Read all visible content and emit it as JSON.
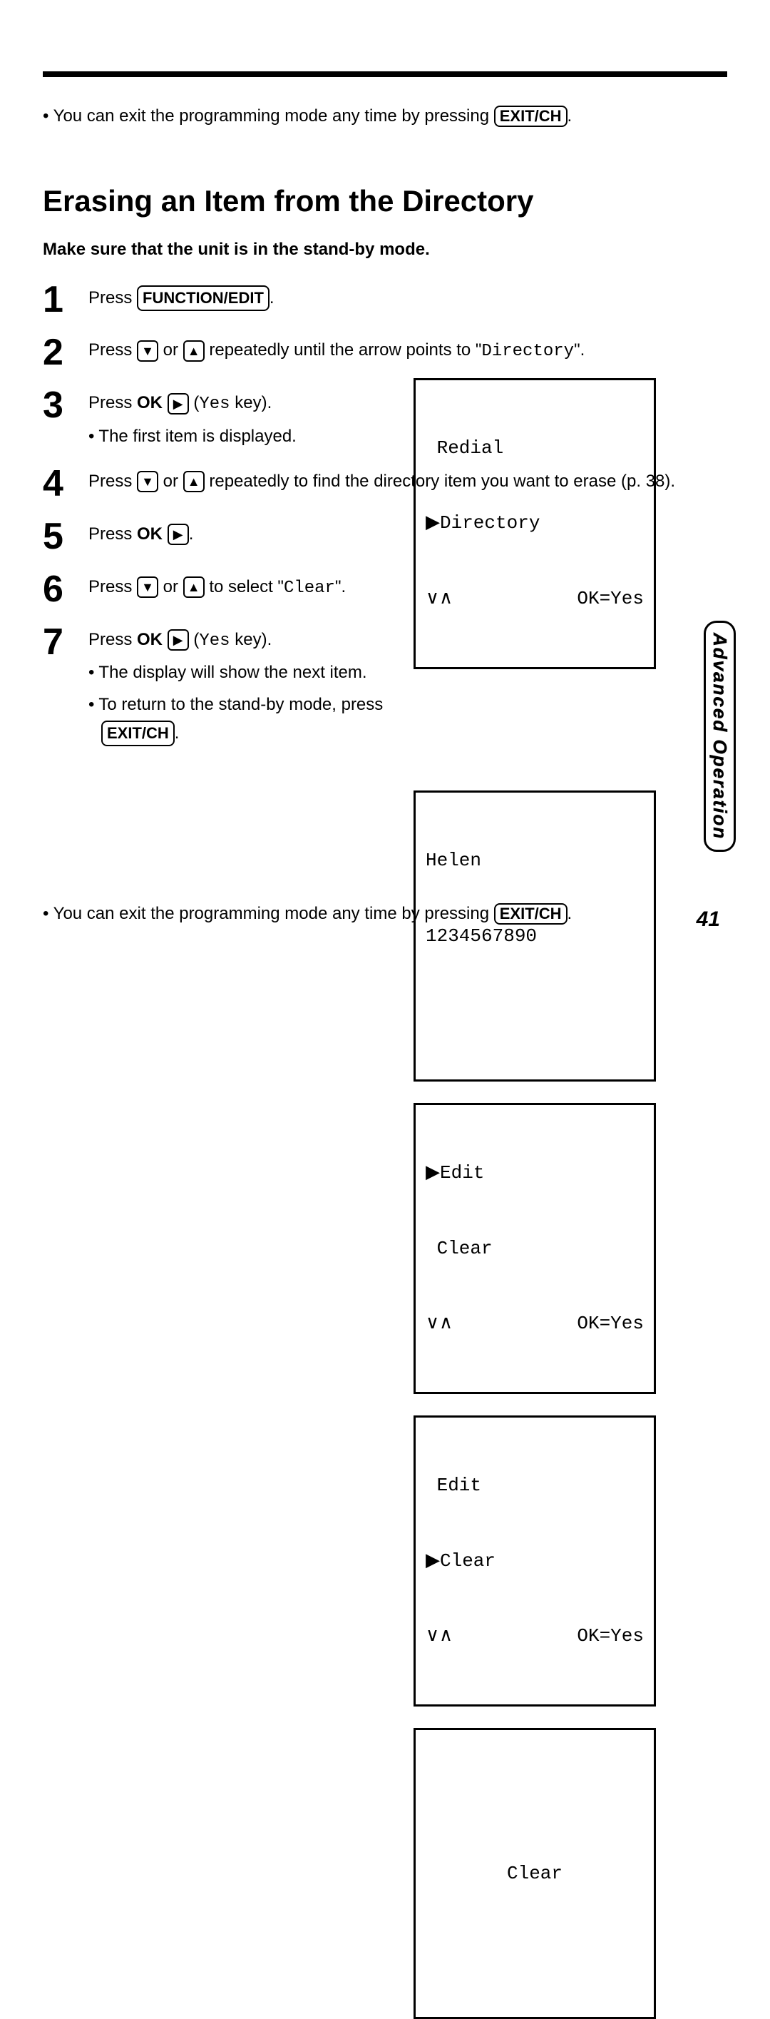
{
  "page_number": "41",
  "top_rule_color": "#000000",
  "intro": {
    "text_before": "You can exit the programming mode any time by pressing ",
    "key_label": "EXIT/CH",
    "text_after": "."
  },
  "section": {
    "title": "Erasing an Item from the Directory",
    "subtitle": "Make sure that the unit is in the stand-by mode."
  },
  "steps": [
    {
      "num": "1",
      "parts": [
        {
          "t": "Press "
        },
        {
          "key": "FUNCTION/EDIT"
        },
        {
          "t": "."
        }
      ]
    },
    {
      "num": "2",
      "parts": [
        {
          "t": "Press "
        },
        {
          "arrow": "▼"
        },
        {
          "t": " or "
        },
        {
          "arrow": "▲"
        },
        {
          "t": " repeatedly until the arrow points to \""
        },
        {
          "mono": "Directory"
        },
        {
          "t": "\"."
        }
      ]
    },
    {
      "num": "3",
      "parts": [
        {
          "t": "Press "
        },
        {
          "bold": "OK "
        },
        {
          "arrow": "▶"
        },
        {
          "t": " ("
        },
        {
          "mono": "Yes"
        },
        {
          "t": " key)."
        }
      ],
      "subs": [
        "The first item is displayed."
      ]
    },
    {
      "num": "4",
      "parts": [
        {
          "t": "Press "
        },
        {
          "arrow": "▼"
        },
        {
          "t": " or "
        },
        {
          "arrow": "▲"
        },
        {
          "t": " repeatedly to find the directory item you want to erase (p. 38)."
        }
      ]
    },
    {
      "num": "5",
      "parts": [
        {
          "t": "Press "
        },
        {
          "bold": "OK "
        },
        {
          "arrow": "▶"
        },
        {
          "t": "."
        }
      ]
    },
    {
      "num": "6",
      "parts": [
        {
          "t": "Press "
        },
        {
          "arrow": "▼"
        },
        {
          "t": " or "
        },
        {
          "arrow": "▲"
        },
        {
          "t": " to select \""
        },
        {
          "mono": "Clear"
        },
        {
          "t": "\"."
        }
      ]
    },
    {
      "num": "7",
      "parts": [
        {
          "t": "Press "
        },
        {
          "bold": "OK "
        },
        {
          "arrow": "▶"
        },
        {
          "t": " ("
        },
        {
          "mono": "Yes"
        },
        {
          "t": " key)."
        }
      ],
      "subs": [
        "The display will show the next item.",
        "To return to the stand-by mode, press"
      ],
      "sub_key": "EXIT/CH"
    }
  ],
  "lcds": {
    "menu_directory": {
      "line1": " Redial",
      "line2": "▶Directory",
      "footer_left": "∨∧",
      "footer_right": "OK=Yes"
    },
    "contact": {
      "line1": "Helen",
      "line2": "1234567890"
    },
    "edit_menu": {
      "line1": "▶Edit",
      "line2": " Clear",
      "footer_left": "∨∧",
      "footer_right": "OK=Yes"
    },
    "clear_menu": {
      "line1": " Edit",
      "line2": "▶Clear",
      "footer_left": "∨∧",
      "footer_right": "OK=Yes"
    },
    "clear_confirm": {
      "center": "Clear"
    }
  },
  "side_tab": "Advanced Operation",
  "footer_note": {
    "text_before": "You can exit the programming mode any time by pressing ",
    "key_label": "EXIT/CH",
    "text_after": "."
  }
}
